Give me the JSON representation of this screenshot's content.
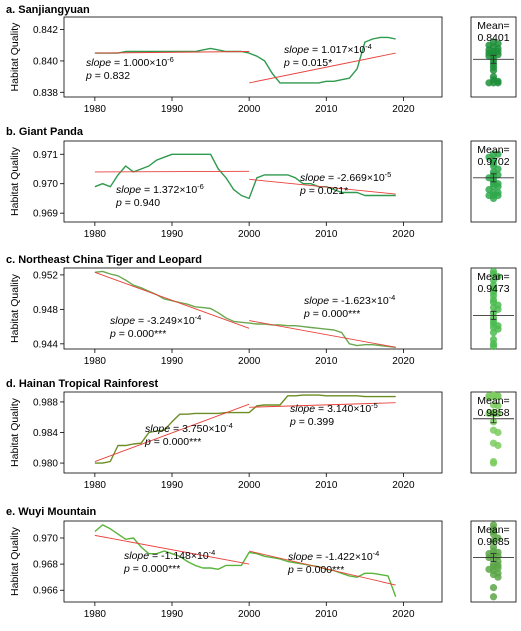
{
  "chart_data": [
    {
      "type": "line",
      "title": "a. Sanjiangyuan",
      "ylabel": "Habitat Quality",
      "xlim": [
        1976,
        2025
      ],
      "ylim": [
        0.8377,
        0.8428
      ],
      "xticks": [
        1980,
        1990,
        2000,
        2010,
        2020
      ],
      "yticks": [
        0.838,
        0.84,
        0.842
      ],
      "ytick_labels": [
        "0.838",
        "0.840",
        "0.842"
      ],
      "line_color": "#2e9a4e",
      "series": [
        {
          "x": [
            1980,
            1981,
            1982,
            1983,
            1984,
            1985,
            1986,
            1987,
            1988,
            1989,
            1990,
            1991,
            1992,
            1993,
            1994,
            1995,
            1996,
            1997,
            1998,
            1999,
            2000,
            2001,
            2002,
            2003,
            2004,
            2005,
            2006,
            2007,
            2008,
            2009,
            2010,
            2011,
            2012,
            2013,
            2014,
            2015,
            2016,
            2017,
            2018,
            2019
          ],
          "values": [
            0.8405,
            0.8405,
            0.8405,
            0.8405,
            0.8406,
            0.8406,
            0.8406,
            0.8406,
            0.8406,
            0.8406,
            0.8406,
            0.8406,
            0.8406,
            0.8406,
            0.8407,
            0.8408,
            0.8407,
            0.8406,
            0.8406,
            0.8406,
            0.8405,
            0.8403,
            0.84,
            0.8392,
            0.8386,
            0.8386,
            0.8386,
            0.8386,
            0.8386,
            0.8386,
            0.8387,
            0.8387,
            0.8388,
            0.8389,
            0.8395,
            0.8412,
            0.8414,
            0.8415,
            0.8415,
            0.8414
          ]
        }
      ],
      "trends": [
        {
          "x": [
            1980,
            2000
          ],
          "values": [
            0.8405,
            0.8406
          ],
          "slope": "1.000×10",
          "exp": "-6",
          "p": "p = 0.832"
        },
        {
          "x": [
            2000,
            2019
          ],
          "values": [
            0.8386,
            0.8405
          ],
          "slope": "1.017×10",
          "exp": "-4",
          "p": "p = 0.015*"
        }
      ],
      "mean_label": "Mean=",
      "mean_value": "0.8401",
      "dots": [
        0.8412,
        0.8411,
        0.841,
        0.8409,
        0.8408,
        0.8407,
        0.8406,
        0.8406,
        0.8405,
        0.8405,
        0.8404,
        0.8404,
        0.8403,
        0.8402,
        0.84,
        0.8398,
        0.8396,
        0.8394,
        0.839,
        0.8388,
        0.8387,
        0.8386,
        0.8386,
        0.8386
      ]
    },
    {
      "type": "line",
      "title": "b. Giant Panda",
      "ylabel": "Habitat Quality",
      "xlim": [
        1976,
        2025
      ],
      "ylim": [
        0.9687,
        0.97145
      ],
      "xticks": [
        1980,
        1990,
        2000,
        2010,
        2020
      ],
      "yticks": [
        0.969,
        0.97,
        0.971
      ],
      "ytick_labels": [
        "0.969",
        "0.970",
        "0.971"
      ],
      "line_color": "#2e9a4e",
      "series": [
        {
          "x": [
            1980,
            1981,
            1982,
            1983,
            1984,
            1985,
            1986,
            1987,
            1988,
            1989,
            1990,
            1991,
            1992,
            1993,
            1994,
            1995,
            1996,
            1997,
            1998,
            1999,
            2000,
            2001,
            2002,
            2003,
            2004,
            2005,
            2006,
            2007,
            2008,
            2009,
            2010,
            2011,
            2012,
            2013,
            2014,
            2015,
            2016,
            2017,
            2018,
            2019
          ],
          "values": [
            0.9699,
            0.97,
            0.9699,
            0.9703,
            0.9706,
            0.9704,
            0.9705,
            0.9706,
            0.9708,
            0.9709,
            0.971,
            0.971,
            0.971,
            0.971,
            0.971,
            0.971,
            0.9705,
            0.9702,
            0.9698,
            0.9696,
            0.9695,
            0.9702,
            0.9703,
            0.9703,
            0.9703,
            0.9703,
            0.9702,
            0.97,
            0.97,
            0.9699,
            0.9699,
            0.9698,
            0.9697,
            0.9697,
            0.9697,
            0.9696,
            0.9696,
            0.9696,
            0.9696,
            0.9696
          ]
        }
      ],
      "trends": [
        {
          "x": [
            1980,
            2000
          ],
          "values": [
            0.9704,
            0.97042
          ],
          "slope": "1.372×10",
          "exp": "-6",
          "p": "p = 0.940"
        },
        {
          "x": [
            2000,
            2019
          ],
          "values": [
            0.97015,
            0.96965
          ],
          "slope": "-2.669×10",
          "exp": "-5",
          "p": "p = 0.021*"
        }
      ],
      "mean_label": "Mean=",
      "mean_value": "0.9702",
      "dots": [
        0.971,
        0.971,
        0.9709,
        0.9708,
        0.9707,
        0.9706,
        0.9705,
        0.9704,
        0.9703,
        0.9703,
        0.9702,
        0.9702,
        0.9701,
        0.97,
        0.97,
        0.9699,
        0.9699,
        0.9698,
        0.9697,
        0.9697,
        0.9696,
        0.9696,
        0.9696,
        0.9695
      ]
    },
    {
      "type": "line",
      "title": "c. Northeast China Tiger and Leopard",
      "ylabel": "Habitat Quality",
      "xlim": [
        1976,
        2025
      ],
      "ylim": [
        0.9434,
        0.9528
      ],
      "xticks": [
        1980,
        1990,
        2000,
        2010,
        2020
      ],
      "yticks": [
        0.944,
        0.948,
        0.952
      ],
      "ytick_labels": [
        "0.944",
        "0.948",
        "0.952"
      ],
      "line_color": "#6aa84f",
      "series": [
        {
          "x": [
            1980,
            1981,
            1982,
            1983,
            1984,
            1985,
            1986,
            1987,
            1988,
            1989,
            1990,
            1991,
            1992,
            1993,
            1994,
            1995,
            1996,
            1997,
            1998,
            1999,
            2000,
            2001,
            2002,
            2003,
            2004,
            2005,
            2006,
            2007,
            2008,
            2009,
            2010,
            2011,
            2012,
            2013,
            2014,
            2015,
            2016,
            2017,
            2018,
            2019
          ],
          "values": [
            0.9523,
            0.9524,
            0.9521,
            0.9519,
            0.9514,
            0.9508,
            0.9505,
            0.9501,
            0.9497,
            0.9492,
            0.949,
            0.9488,
            0.9486,
            0.9483,
            0.9482,
            0.9481,
            0.9476,
            0.947,
            0.9466,
            0.9465,
            0.9464,
            0.9463,
            0.9463,
            0.9462,
            0.9462,
            0.9461,
            0.9461,
            0.946,
            0.9459,
            0.9458,
            0.9457,
            0.9456,
            0.9453,
            0.944,
            0.9438,
            0.9439,
            0.9439,
            0.9438,
            0.9437,
            0.9436
          ]
        }
      ],
      "trends": [
        {
          "x": [
            1980,
            2000
          ],
          "values": [
            0.9523,
            0.9458
          ],
          "slope": "-3.249×10",
          "exp": "-4",
          "p": "p = 0.000***"
        },
        {
          "x": [
            2000,
            2019
          ],
          "values": [
            0.9467,
            0.9436
          ],
          "slope": "-1.623×10",
          "exp": "-4",
          "p": "p = 0.000***"
        }
      ],
      "mean_label": "Mean=",
      "mean_value": "0.9473",
      "dots": [
        0.9524,
        0.9521,
        0.9518,
        0.9514,
        0.9508,
        0.9504,
        0.95,
        0.9496,
        0.9491,
        0.9488,
        0.9485,
        0.9482,
        0.948,
        0.9476,
        0.947,
        0.9466,
        0.9463,
        0.9461,
        0.9459,
        0.9457,
        0.9453,
        0.9445,
        0.944,
        0.9437
      ]
    },
    {
      "type": "line",
      "title": "d. Hainan Tropical  Rainforest",
      "ylabel": "Habitat Quality",
      "xlim": [
        1976,
        2025
      ],
      "ylim": [
        0.9787,
        0.9893
      ],
      "xticks": [
        1980,
        1990,
        2000,
        2010,
        2020
      ],
      "yticks": [
        0.98,
        0.984,
        0.988
      ],
      "ytick_labels": [
        "0.980",
        "0.984",
        "0.988"
      ],
      "line_color": "#6b8e23",
      "series": [
        {
          "x": [
            1980,
            1981,
            1982,
            1983,
            1984,
            1985,
            1986,
            1987,
            1988,
            1989,
            1990,
            1991,
            1992,
            1993,
            1994,
            1995,
            1996,
            1997,
            1998,
            1999,
            2000,
            2001,
            2002,
            2003,
            2004,
            2005,
            2006,
            2007,
            2008,
            2009,
            2010,
            2011,
            2012,
            2013,
            2014,
            2015,
            2016,
            2017,
            2018,
            2019
          ],
          "values": [
            0.98,
            0.98,
            0.9802,
            0.9823,
            0.9823,
            0.9825,
            0.9826,
            0.984,
            0.9842,
            0.9843,
            0.9854,
            0.9864,
            0.9864,
            0.9865,
            0.9865,
            0.9865,
            0.9865,
            0.9866,
            0.9866,
            0.9866,
            0.9866,
            0.9875,
            0.9876,
            0.9876,
            0.9876,
            0.9888,
            0.9888,
            0.9889,
            0.9889,
            0.9889,
            0.9888,
            0.9888,
            0.9888,
            0.9888,
            0.9888,
            0.9887,
            0.9887,
            0.9887,
            0.9887,
            0.9887
          ]
        }
      ],
      "trends": [
        {
          "x": [
            1980,
            2000
          ],
          "values": [
            0.9802,
            0.9877
          ],
          "slope": "3.750×10",
          "exp": "-4",
          "p": "p = 0.000***"
        },
        {
          "x": [
            2000,
            2019
          ],
          "values": [
            0.9873,
            0.9879
          ],
          "slope": "3.140×10",
          "exp": "-5",
          "p": "p = 0.399"
        }
      ],
      "mean_label": "Mean=",
      "mean_value": "0.9858",
      "dots": [
        0.9889,
        0.9888,
        0.9888,
        0.9887,
        0.9887,
        0.9886,
        0.9876,
        0.9875,
        0.9866,
        0.9865,
        0.9865,
        0.9864,
        0.9854,
        0.9843,
        0.984,
        0.9826,
        0.9823,
        0.9802,
        0.98
      ]
    },
    {
      "type": "line",
      "title": "e. Wuyi Mountain",
      "ylabel": "Habitat Quality",
      "xlim": [
        1976,
        2025
      ],
      "ylim": [
        0.9651,
        0.9713
      ],
      "xticks": [
        1980,
        1990,
        2000,
        2010,
        2020
      ],
      "yticks": [
        0.966,
        0.968,
        0.97
      ],
      "ytick_labels": [
        "0.966",
        "0.968",
        "0.970"
      ],
      "line_color": "#59b43a",
      "series": [
        {
          "x": [
            1980,
            1981,
            1982,
            1983,
            1984,
            1985,
            1986,
            1987,
            1988,
            1989,
            1990,
            1991,
            1992,
            1993,
            1994,
            1995,
            1996,
            1997,
            1998,
            1999,
            2000,
            2001,
            2002,
            2003,
            2004,
            2005,
            2006,
            2007,
            2008,
            2009,
            2010,
            2011,
            2012,
            2013,
            2014,
            2015,
            2016,
            2017,
            2018,
            2019
          ],
          "values": [
            0.9705,
            0.971,
            0.9707,
            0.9703,
            0.9699,
            0.97,
            0.9693,
            0.9688,
            0.9688,
            0.969,
            0.9688,
            0.9686,
            0.9682,
            0.9679,
            0.9677,
            0.9677,
            0.9676,
            0.9679,
            0.9679,
            0.9679,
            0.9689,
            0.9688,
            0.9686,
            0.9685,
            0.9684,
            0.9682,
            0.9681,
            0.968,
            0.9679,
            0.9678,
            0.9676,
            0.9675,
            0.9673,
            0.9671,
            0.967,
            0.9673,
            0.9673,
            0.9672,
            0.9671,
            0.9655
          ]
        }
      ],
      "trends": [
        {
          "x": [
            1980,
            2000
          ],
          "values": [
            0.9702,
            0.968
          ],
          "slope": "-1.148×10",
          "exp": "-4",
          "p": "p = 0.000***"
        },
        {
          "x": [
            2000,
            2019
          ],
          "values": [
            0.969,
            0.9664
          ],
          "slope": "-1.422×10",
          "exp": "-4",
          "p": "p = 0.000***"
        }
      ],
      "mean_label": "Mean=",
      "mean_value": "0.9685",
      "dots": [
        0.971,
        0.9707,
        0.9705,
        0.9703,
        0.97,
        0.9698,
        0.9693,
        0.969,
        0.9689,
        0.9688,
        0.9687,
        0.9686,
        0.9685,
        0.9684,
        0.9682,
        0.968,
        0.9679,
        0.9678,
        0.9677,
        0.9676,
        0.9675,
        0.9673,
        0.9672,
        0.967,
        0.9662,
        0.9655
      ]
    }
  ],
  "trend_line_color": "#e8413b",
  "slope_word": "slope",
  "slope_eq": " = ",
  "dot_colors": [
    "#1f8f3a",
    "#2ea84a",
    "#4cbb50",
    "#7acb5e",
    "#5aa646"
  ]
}
